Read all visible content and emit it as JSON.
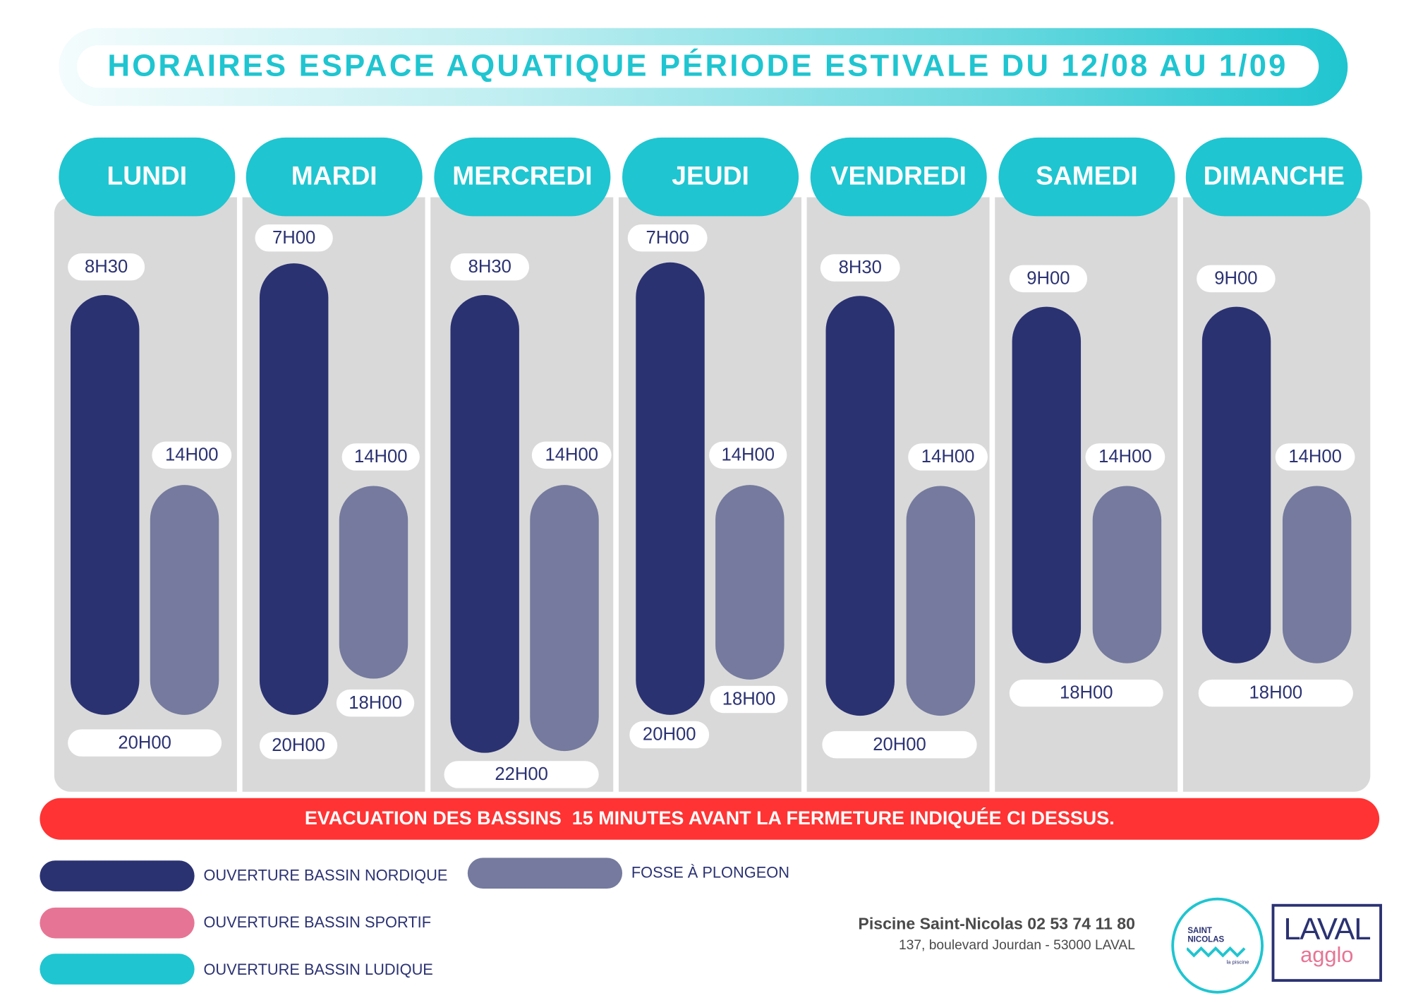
{
  "title": "HORAIRES ESPACE AQUATIQUE PÉRIODE ESTIVALE DU 12/08 AU 1/09",
  "days": [
    {
      "name": "LUNDI",
      "nordique_open": "8H30",
      "fosse_open": "14H00",
      "fosse_close": "",
      "nordique_close": "20H00"
    },
    {
      "name": "MARDI",
      "nordique_open": "7H00",
      "fosse_open": "14H00",
      "fosse_close": "18H00",
      "nordique_close": "20H00"
    },
    {
      "name": "MERCREDI",
      "nordique_open": "8H30",
      "fosse_open": "14H00",
      "fosse_close": "",
      "nordique_close": "22H00"
    },
    {
      "name": "JEUDI",
      "nordique_open": "7H00",
      "fosse_open": "14H00",
      "fosse_close": "18H00",
      "nordique_close": "20H00"
    },
    {
      "name": "VENDREDI",
      "nordique_open": "8H30",
      "fosse_open": "14H00",
      "fosse_close": "",
      "nordique_close": "20H00"
    },
    {
      "name": "SAMEDI",
      "nordique_open": "9H00",
      "fosse_open": "14H00",
      "fosse_close": "",
      "nordique_close": "18H00"
    },
    {
      "name": "DIMANCHE",
      "nordique_open": "9H00",
      "fosse_open": "14H00",
      "fosse_close": "",
      "nordique_close": "18H00"
    }
  ],
  "banner": "EVACUATION DES BASSINS  15 MINUTES AVANT LA FERMETURE INDIQUÉE CI DESSUS.",
  "legend": [
    {
      "label": "OUVERTURE BASSIN NORDIQUE",
      "color": "#2b3272"
    },
    {
      "label": "OUVERTURE BASSIN SPORTIF",
      "color": "#e67595"
    },
    {
      "label": "OUVERTURE BASSIN LUDIQUE",
      "color": "#1fc5d0"
    },
    {
      "label": "FOSSE À PLONGEON",
      "color": "#757a9e"
    }
  ],
  "footer": {
    "line1": "Piscine Saint-Nicolas 02 53 74 11 80",
    "line2": "137, boulevard Jourdan - 53000 LAVAL"
  },
  "logos": {
    "saint_nicolas": {
      "line1": "SAINT",
      "line2": "NICOLAS",
      "sub": "la piscine"
    },
    "laval": {
      "top": "LAVAL",
      "bottom": "agglo"
    }
  },
  "colors": {
    "accent": "#1fc5d0",
    "navy": "#2b3272",
    "fosse": "#757a9e",
    "alert": "#ff3333",
    "pink": "#e67595"
  }
}
